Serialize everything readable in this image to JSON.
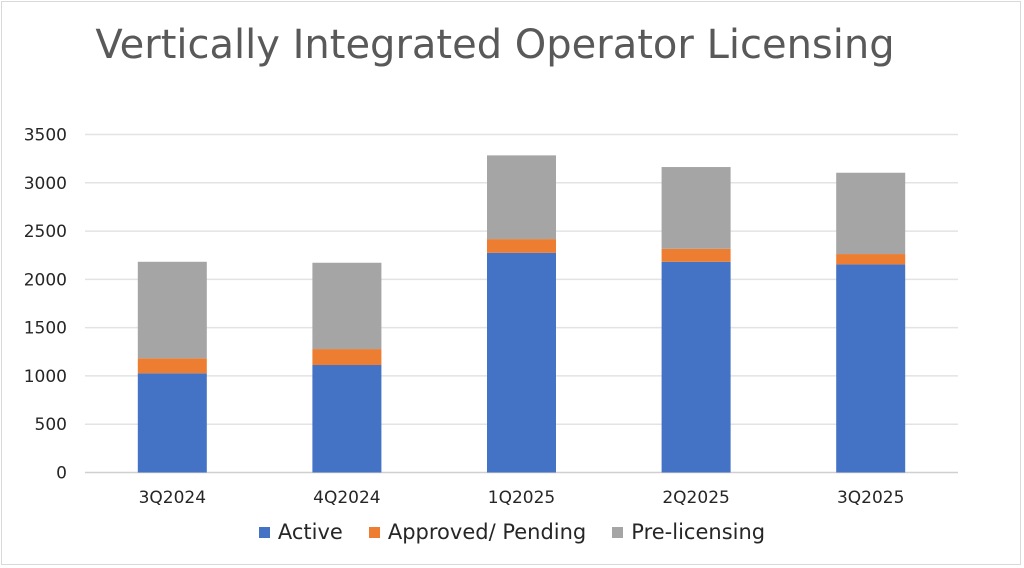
{
  "chart_data": {
    "type": "bar",
    "stacked": true,
    "title": "Vertically Integrated Operator Licensing",
    "xlabel": "",
    "ylabel": "",
    "categories": [
      "3Q2024",
      "4Q2024",
      "1Q2025",
      "2Q2025",
      "3Q2025"
    ],
    "series": [
      {
        "name": "Active",
        "color": "#4472C4",
        "values": [
          1027,
          1113,
          2275,
          2182,
          2155
        ]
      },
      {
        "name": "Approved/ Pending",
        "color": "#ED7D31",
        "values": [
          155,
          165,
          142,
          135,
          107
        ]
      },
      {
        "name": "Pre-licensing",
        "color": "#A5A5A5",
        "values": [
          1000,
          894,
          867,
          846,
          842
        ]
      }
    ],
    "ylim": [
      0,
      3500
    ],
    "yticks": [
      "0",
      "500",
      "1000",
      "1500",
      "2000",
      "2500",
      "3000",
      "3500"
    ],
    "grid": true,
    "legend": "bottom"
  }
}
